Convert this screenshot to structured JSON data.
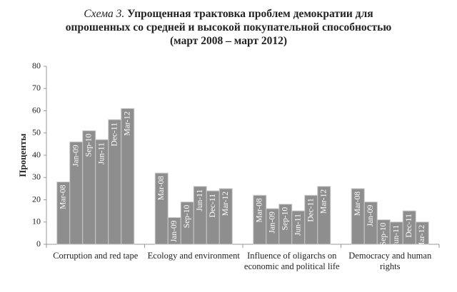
{
  "chart_data": {
    "type": "bar",
    "title_label": "Схема 3.",
    "title": [
      "Упрощенная трактовка проблем демократии для",
      "опрошенных со средней и высокой покупательной способностью",
      "(март 2008 – март 2012)"
    ],
    "y_label": "Проценты",
    "categories": [
      "Corruption and red tape",
      "Ecology and environment",
      "Influence of oligarchs on economic and political life",
      "Democracy and human rights"
    ],
    "series": [
      {
        "name": "Mar-08",
        "color": "#8e8e8e",
        "values": [
          28,
          32,
          22,
          25
        ]
      },
      {
        "name": "Jan-09",
        "color": "#8e8e8e",
        "values": [
          46,
          12,
          16,
          19
        ]
      },
      {
        "name": "Sep-10",
        "color": "#8e8e8e",
        "values": [
          51,
          19,
          18,
          11
        ]
      },
      {
        "name": "Jun-11",
        "color": "#8e8e8e",
        "values": [
          47,
          26,
          15,
          10
        ]
      },
      {
        "name": "Dec-11",
        "color": "#8e8e8e",
        "values": [
          56,
          24,
          22,
          15
        ]
      },
      {
        "name": "Mar-12",
        "color": "#8e8e8e",
        "values": [
          61,
          25,
          26,
          10
        ]
      }
    ],
    "ylim": [
      0,
      80
    ],
    "yticks": [
      0,
      10,
      20,
      30,
      40,
      50,
      60,
      70,
      80
    ]
  }
}
